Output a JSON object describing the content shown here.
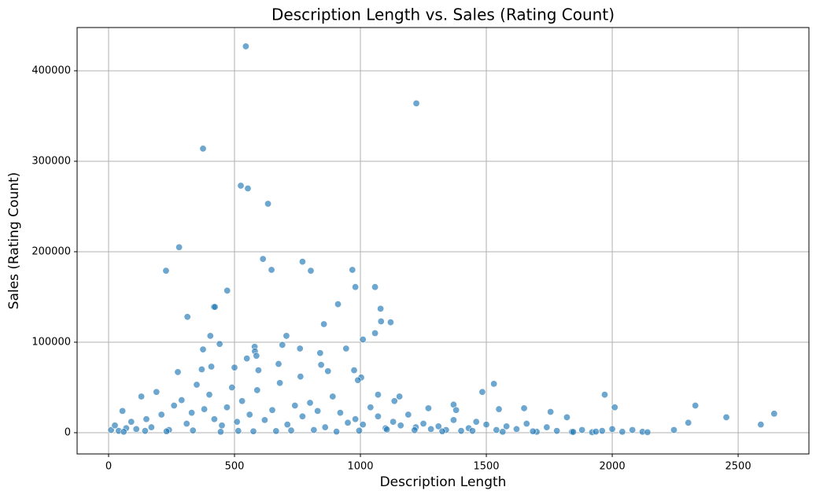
{
  "chart_data": {
    "type": "scatter",
    "title": "Description Length vs. Sales (Rating Count)",
    "x_label": "Description Length",
    "y_label": "Sales (Rating Count)",
    "color": "#1f77b4",
    "grid": true,
    "xlim": [
      -125,
      2781
    ],
    "ylim": [
      -23500,
      447800
    ],
    "xticks": [
      0,
      500,
      1000,
      1500,
      2000,
      2500
    ],
    "yticks": [
      0,
      100000,
      200000,
      300000,
      400000
    ],
    "x": [
      545,
      1222,
      375,
      525,
      553,
      633,
      280,
      228,
      613,
      770,
      803,
      968,
      647,
      980,
      1058,
      471,
      911,
      418,
      422,
      1080,
      313,
      1120,
      1082,
      855,
      1058,
      404,
      706,
      1010,
      441,
      690,
      580,
      943,
      375,
      760,
      581,
      840,
      587,
      549,
      844,
      675,
      500,
      408,
      370,
      595,
      275,
      975,
      871,
      1003,
      990,
      762,
      1530,
      1484,
      1970,
      2010,
      2330,
      2453,
      2643,
      2590,
      2302,
      2245,
      1755,
      1820,
      1650,
      1550,
      1370,
      1380,
      1270,
      1155,
      1070,
      1135,
      10,
      25,
      40,
      55,
      70,
      90,
      110,
      130,
      150,
      170,
      190,
      210,
      240,
      260,
      290,
      310,
      330,
      350,
      380,
      400,
      420,
      450,
      470,
      490,
      510,
      530,
      560,
      590,
      620,
      650,
      680,
      710,
      740,
      770,
      800,
      830,
      860,
      890,
      920,
      950,
      980,
      1010,
      1040,
      1070,
      1100,
      1130,
      1160,
      1190,
      1220,
      1250,
      1280,
      1310,
      1340,
      1370,
      1400,
      1430,
      1460,
      1500,
      1540,
      1580,
      1620,
      1660,
      1700,
      1740,
      1780,
      1840,
      1880,
      1920,
      1960,
      2000,
      2040,
      2080,
      2120,
      2140,
      60,
      145,
      230,
      335,
      445,
      515,
      575,
      665,
      725,
      815,
      905,
      995,
      1105,
      1215,
      1325,
      1445,
      1565,
      1685,
      1845,
      1935
    ],
    "values": [
      427000,
      364000,
      314000,
      273000,
      270000,
      253000,
      205000,
      179000,
      192000,
      189000,
      179000,
      180000,
      180000,
      161000,
      161000,
      157000,
      142000,
      139000,
      139000,
      137000,
      128000,
      122000,
      123000,
      120000,
      110000,
      107000,
      107000,
      103000,
      98000,
      97000,
      95000,
      93000,
      92000,
      93000,
      90000,
      88000,
      85000,
      82000,
      75000,
      76000,
      72000,
      73000,
      70000,
      69000,
      67000,
      69000,
      68000,
      61000,
      58000,
      62000,
      54000,
      45000,
      42000,
      28000,
      30000,
      17000,
      21000,
      9000,
      11000,
      3000,
      23000,
      17000,
      27000,
      26000,
      31000,
      25000,
      27000,
      40000,
      42000,
      35000,
      3000,
      8000,
      2000,
      24000,
      5000,
      12000,
      4000,
      40000,
      15000,
      6000,
      45000,
      20000,
      3000,
      30000,
      36000,
      10000,
      22000,
      53000,
      26000,
      42000,
      15000,
      8000,
      28000,
      50000,
      12000,
      35000,
      20000,
      47000,
      14000,
      25000,
      55000,
      9000,
      30000,
      18000,
      33000,
      24000,
      6000,
      40000,
      22000,
      11000,
      15000,
      9000,
      28000,
      18000,
      5000,
      12000,
      8000,
      20000,
      6000,
      10000,
      4000,
      7000,
      3000,
      14000,
      2000,
      5000,
      12000,
      9000,
      3000,
      7000,
      4000,
      10000,
      1000,
      6000,
      2000,
      1000,
      3000,
      500,
      2000,
      4000,
      1000,
      3000,
      1000,
      500,
      1000,
      2000,
      1500,
      2500,
      1000,
      2000,
      1500,
      1800,
      2500,
      3000,
      1200,
      2200,
      3500,
      2800,
      1500,
      2000,
      1000,
      1500,
      800,
      1200
    ]
  }
}
